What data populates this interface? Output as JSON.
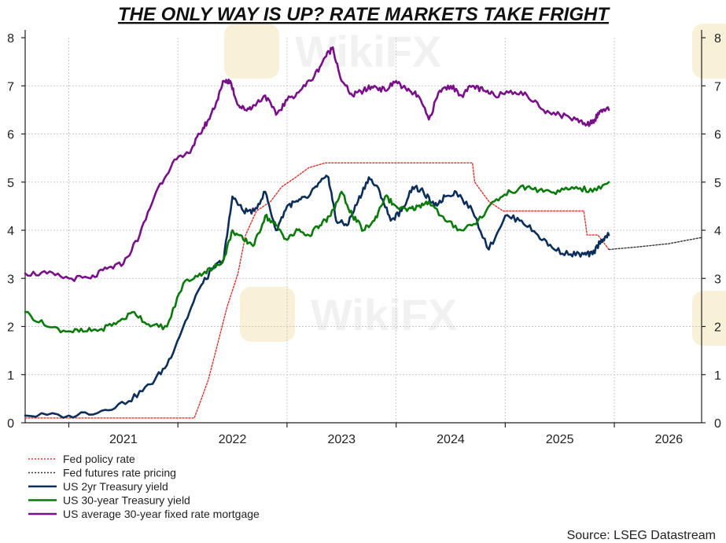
{
  "chart_data": {
    "type": "line",
    "title": "THE ONLY WAY IS UP? RATE MARKETS TAKE FRIGHT",
    "source": "Source: LSEG Datastream",
    "xlabel": "",
    "ylabel": "",
    "ylim": [
      0,
      8
    ],
    "yticks": [
      0,
      1,
      2,
      3,
      4,
      5,
      6,
      7,
      8
    ],
    "xlim": [
      2020.6,
      2026.8
    ],
    "xtick_labels": [
      "2021",
      "2022",
      "2023",
      "2024",
      "2025",
      "2026"
    ],
    "grid": true,
    "legend_position": "bottom-left",
    "series": [
      {
        "name": "Fed policy rate",
        "color": "#e0302a",
        "style": "dotted",
        "x": [
          2020.6,
          2022.15,
          2022.2,
          2022.28,
          2022.36,
          2022.45,
          2022.55,
          2022.62,
          2022.72,
          2022.85,
          2022.95,
          2023.08,
          2023.2,
          2023.35,
          2023.55,
          2024.7,
          2024.72,
          2024.85,
          2024.98,
          2025.72,
          2025.75,
          2025.85,
          2025.95
        ],
        "values": [
          0.1,
          0.1,
          0.4,
          0.9,
          1.6,
          2.4,
          3.1,
          3.9,
          4.4,
          4.6,
          4.9,
          5.1,
          5.3,
          5.4,
          5.4,
          5.4,
          5.0,
          4.6,
          4.4,
          4.4,
          3.9,
          3.9,
          3.6
        ]
      },
      {
        "name": "Fed futures rate pricing",
        "color": "#333333",
        "style": "dotted",
        "x": [
          2025.95,
          2026.2,
          2026.5,
          2026.8
        ],
        "values": [
          3.6,
          3.65,
          3.72,
          3.85
        ]
      },
      {
        "name": "US 2yr Treasury yield",
        "color": "#0b2e5a",
        "style": "solid",
        "x": [
          2020.6,
          2021.0,
          2021.3,
          2021.55,
          2021.75,
          2021.9,
          2022.05,
          2022.2,
          2022.32,
          2022.42,
          2022.5,
          2022.6,
          2022.7,
          2022.8,
          2022.9,
          2023.0,
          2023.1,
          2023.2,
          2023.3,
          2023.38,
          2023.45,
          2023.55,
          2023.65,
          2023.75,
          2023.85,
          2023.95,
          2024.05,
          2024.15,
          2024.25,
          2024.35,
          2024.45,
          2024.55,
          2024.7,
          2024.85,
          2025.0,
          2025.15,
          2025.3,
          2025.45,
          2025.6,
          2025.72,
          2025.8,
          2025.88,
          2025.95
        ],
        "values": [
          0.15,
          0.15,
          0.25,
          0.45,
          0.8,
          1.2,
          2.0,
          2.8,
          3.2,
          3.4,
          4.7,
          4.4,
          4.4,
          4.8,
          4.0,
          4.5,
          4.6,
          4.7,
          5.0,
          5.1,
          4.2,
          4.1,
          4.6,
          5.1,
          4.8,
          4.2,
          4.4,
          4.9,
          4.8,
          4.5,
          4.7,
          4.8,
          4.4,
          3.6,
          4.3,
          4.2,
          3.9,
          3.6,
          3.5,
          3.5,
          3.5,
          3.8,
          3.9
        ]
      },
      {
        "name": "US 30-year Treasury yield",
        "color": "#0a7a0a",
        "style": "solid",
        "x": [
          2020.6,
          2020.8,
          2021.0,
          2021.15,
          2021.3,
          2021.45,
          2021.6,
          2021.75,
          2021.9,
          2022.05,
          2022.2,
          2022.32,
          2022.42,
          2022.5,
          2022.6,
          2022.7,
          2022.8,
          2022.9,
          2023.0,
          2023.1,
          2023.2,
          2023.3,
          2023.4,
          2023.5,
          2023.6,
          2023.7,
          2023.8,
          2023.9,
          2024.0,
          2024.1,
          2024.2,
          2024.3,
          2024.45,
          2024.6,
          2024.75,
          2024.9,
          2025.05,
          2025.2,
          2025.35,
          2025.5,
          2025.65,
          2025.8,
          2025.95
        ],
        "values": [
          2.3,
          2.0,
          1.9,
          1.9,
          1.95,
          2.1,
          2.3,
          2.0,
          2.0,
          2.9,
          3.1,
          3.2,
          3.4,
          4.0,
          3.8,
          3.7,
          4.3,
          4.1,
          3.8,
          4.0,
          3.9,
          4.1,
          4.3,
          4.8,
          4.3,
          4.0,
          4.2,
          4.7,
          4.5,
          4.4,
          4.5,
          4.6,
          4.2,
          4.0,
          4.2,
          4.6,
          4.8,
          4.9,
          4.8,
          4.8,
          4.9,
          4.8,
          5.0
        ]
      },
      {
        "name": "US average 30-year fixed rate mortgage",
        "color": "#7a0f8a",
        "style": "solid",
        "x": [
          2020.6,
          2020.8,
          2021.0,
          2021.2,
          2021.35,
          2021.5,
          2021.65,
          2021.8,
          2021.95,
          2022.1,
          2022.2,
          2022.28,
          2022.36,
          2022.42,
          2022.48,
          2022.55,
          2022.62,
          2022.7,
          2022.8,
          2022.9,
          2023.0,
          2023.12,
          2023.25,
          2023.35,
          2023.42,
          2023.5,
          2023.6,
          2023.7,
          2023.8,
          2023.9,
          2024.0,
          2024.1,
          2024.2,
          2024.3,
          2024.4,
          2024.5,
          2024.6,
          2024.7,
          2024.8,
          2024.9,
          2025.05,
          2025.2,
          2025.35,
          2025.5,
          2025.65,
          2025.75,
          2025.82,
          2025.88,
          2025.95
        ],
        "values": [
          3.1,
          3.1,
          3.0,
          3.0,
          3.2,
          3.3,
          3.9,
          4.8,
          5.4,
          5.6,
          6.0,
          6.3,
          6.7,
          7.1,
          7.1,
          6.6,
          6.5,
          6.6,
          6.8,
          6.4,
          6.7,
          6.9,
          7.2,
          7.6,
          7.8,
          7.1,
          6.8,
          6.9,
          7.0,
          6.9,
          7.1,
          6.9,
          6.8,
          6.3,
          6.9,
          7.0,
          6.8,
          7.0,
          6.9,
          6.8,
          6.9,
          6.8,
          6.5,
          6.4,
          6.3,
          6.2,
          6.3,
          6.5,
          6.5
        ]
      }
    ]
  },
  "watermark": "WikiFX"
}
